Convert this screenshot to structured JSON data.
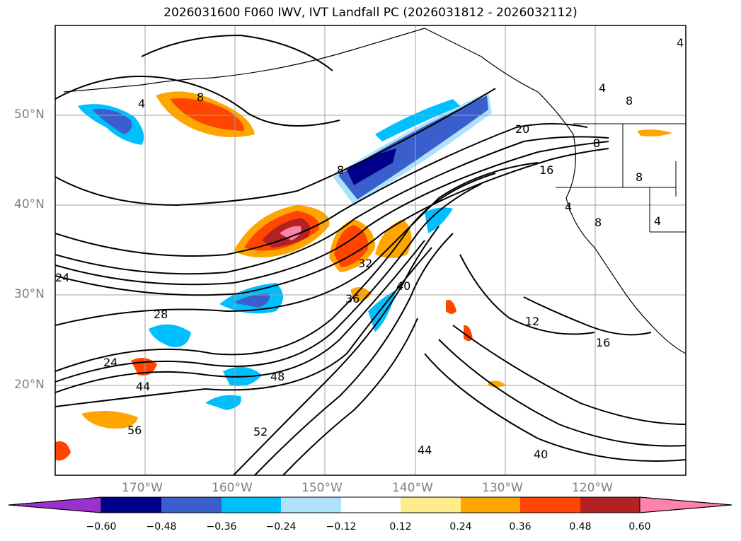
{
  "title": "2026031600 F060 IWV, IVT Landfall PC (2026031812 - 2026032112)",
  "lat_labels": [
    "50°N",
    "40°N",
    "30°N",
    "20°N"
  ],
  "lon_labels": [
    "170°W",
    "160°W",
    "150°W",
    "140°W",
    "130°W",
    "120°W"
  ],
  "contour_labels": [
    "4",
    "8",
    "4",
    "8",
    "8",
    "20",
    "8",
    "16",
    "24",
    "4",
    "4",
    "8",
    "8",
    "32",
    "28",
    "36",
    "40",
    "12",
    "16",
    "24",
    "44",
    "48",
    "52",
    "56",
    "44",
    "40",
    "4"
  ],
  "colorbar": {
    "colors": [
      "#9932cc",
      "#00008b",
      "#3a5fcd",
      "#00bfff",
      "#aee2fa",
      "#ffffff",
      "#ffec8b",
      "#ffa500",
      "#ff4500",
      "#b22222",
      "#ff82ab"
    ],
    "tick_labels": [
      "−0.60",
      "−0.48",
      "−0.36",
      "−0.24",
      "−0.12",
      "0.12",
      "0.24",
      "0.36",
      "0.48",
      "0.60"
    ]
  },
  "colors": {
    "frame": "#000000",
    "grid": "#a0a0a0",
    "axis_label": "#808080",
    "contour": "#000000"
  }
}
